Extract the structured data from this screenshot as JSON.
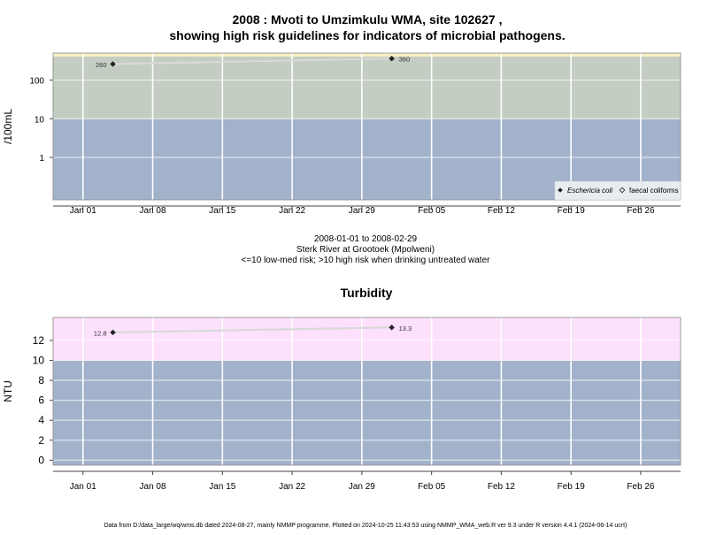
{
  "title_line1": "2008 : Mvoti to Umzimkulu WMA, site 102627 ,",
  "title_line2": "showing high risk guidelines for indicators of microbial pathogens.",
  "caption": {
    "line1": "2008-01-01 to 2008-02-29",
    "line2": "Sterk River at Grootoek (Mpolweni)",
    "line3": "<=10 low-med risk; >10 high risk when drinking untreated water"
  },
  "footer": "Data from D:/data_large/wq/wms.db dated 2024-08-27, mainly NMMP programme. Plotted on 2024-10-25 11:43:53 using NMMP_WMA_web.R ver 9.3 under R version 4.4.1 (2024-06-14 ucrt)",
  "colors": {
    "low_risk_band": "#a2b2cb",
    "micro_high_band": "#c3cdc2",
    "micro_top_strip": "#f8efc4",
    "turb_high_band": "#fce0fc",
    "gridline": "#ffffff",
    "series_line": "#d9d9d9",
    "point": "#222222",
    "axis": "#444444"
  },
  "x_ticks": [
    "Jan 01",
    "Jan 08",
    "Jan 15",
    "Jan 22",
    "Jan 29",
    "Feb 05",
    "Feb 12",
    "Feb 19",
    "Feb 26"
  ],
  "chart_data": [
    {
      "type": "line",
      "title": "",
      "ylabel": "/100mL",
      "y_scale": "log10",
      "ylim": [
        0.08,
        500
      ],
      "xlim": [
        "2007-12-29",
        "2008-03-01"
      ],
      "y_ticks": [
        "1",
        "10",
        "100"
      ],
      "threshold": 10,
      "grid": true,
      "legend_position": "bottom-right",
      "legend": [
        {
          "label": "Eschericia coli",
          "marker": "filled-diamond",
          "italic": true
        },
        {
          "label": "faecal coliforms",
          "marker": "open-diamond",
          "italic": false
        }
      ],
      "series": [
        {
          "name": "Eschericia coli",
          "points": [
            {
              "x": "2008-01-04",
              "y": 260,
              "label": "260"
            },
            {
              "x": "2008-02-01",
              "y": 360,
              "label": "360"
            }
          ]
        }
      ]
    },
    {
      "type": "line",
      "title": "Turbidity",
      "ylabel": "NTU",
      "y_scale": "linear",
      "ylim": [
        -0.5,
        14.3
      ],
      "xlim": [
        "2007-12-29",
        "2008-03-01"
      ],
      "y_ticks": [
        "0",
        "2",
        "4",
        "6",
        "8",
        "10",
        "12"
      ],
      "threshold": 10,
      "grid": true,
      "series": [
        {
          "name": "",
          "points": [
            {
              "x": "2008-01-04",
              "y": 12.8,
              "label": "12.8"
            },
            {
              "x": "2008-02-01",
              "y": 13.3,
              "label": "13.3"
            }
          ]
        }
      ]
    }
  ]
}
